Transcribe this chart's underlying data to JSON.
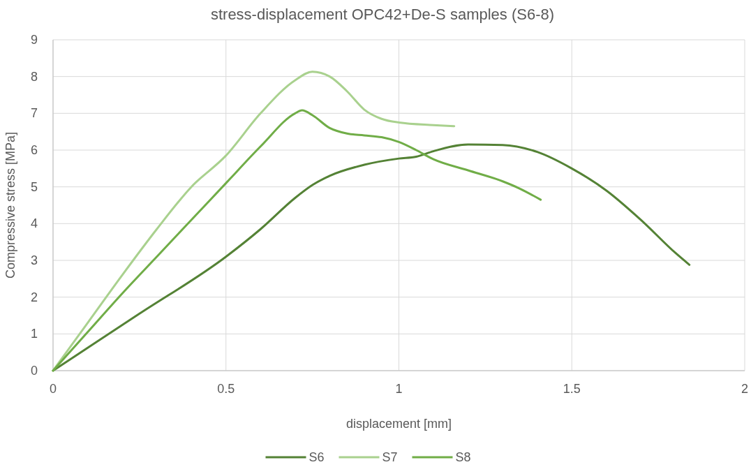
{
  "chart_data": {
    "type": "line",
    "title": "stress-displacement OPC42+De-S samples (S6-8)",
    "xlabel": "displacement [mm]",
    "ylabel": "Compressive stress [MPa]",
    "xlim": [
      0,
      2
    ],
    "xticks": [
      0,
      0.5,
      1,
      1.5,
      2
    ],
    "ylim": [
      0,
      9
    ],
    "yticks": [
      0,
      1,
      2,
      3,
      4,
      5,
      6,
      7,
      8,
      9
    ],
    "grid": true,
    "legend": "bottom",
    "marker": "none",
    "line_style": "solid",
    "series": [
      {
        "name": "S6",
        "color": "#548235",
        "x": [
          0,
          0.25,
          0.5,
          0.6,
          0.7,
          0.75,
          0.8,
          0.9,
          1.0,
          1.05,
          1.1,
          1.2,
          1.3,
          1.4,
          1.5,
          1.6,
          1.7,
          1.8,
          1.84
        ],
        "values": [
          0,
          1.55,
          3.1,
          3.85,
          4.7,
          5.05,
          5.3,
          5.6,
          5.77,
          5.82,
          5.97,
          6.15,
          6.14,
          5.95,
          5.5,
          4.9,
          4.1,
          3.2,
          2.88
        ]
      },
      {
        "name": "S7",
        "color": "#a9d18e",
        "x": [
          0,
          0.1,
          0.2,
          0.3,
          0.4,
          0.5,
          0.6,
          0.7,
          0.75,
          0.8,
          0.85,
          0.9,
          0.95,
          1.0,
          1.1,
          1.16
        ],
        "values": [
          0,
          1.3,
          2.6,
          3.85,
          5.0,
          5.85,
          7.0,
          7.9,
          8.13,
          8.0,
          7.6,
          7.1,
          6.85,
          6.75,
          6.68,
          6.65
        ]
      },
      {
        "name": "S8",
        "color": "#70ad47",
        "x": [
          0,
          0.1,
          0.2,
          0.3,
          0.4,
          0.5,
          0.6,
          0.7,
          0.72,
          0.75,
          0.8,
          0.85,
          0.9,
          0.95,
          1.0,
          1.05,
          1.1,
          1.2,
          1.3,
          1.35,
          1.41
        ],
        "values": [
          0,
          1.05,
          2.1,
          3.1,
          4.1,
          5.1,
          6.1,
          7.0,
          7.08,
          6.95,
          6.6,
          6.45,
          6.4,
          6.35,
          6.22,
          6.0,
          5.75,
          5.45,
          5.15,
          4.95,
          4.65
        ]
      }
    ]
  }
}
